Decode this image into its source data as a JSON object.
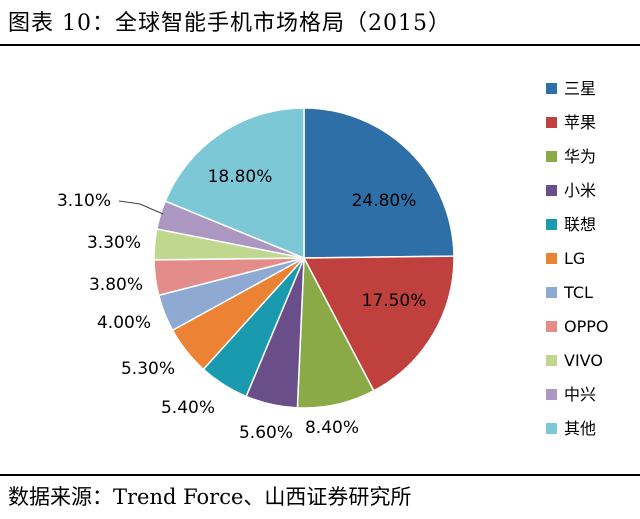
{
  "header": {
    "title": "图表 10：全球智能手机市场格局（2015）"
  },
  "footer": {
    "source": "数据来源：Trend Force、山西证券研究所"
  },
  "chart_data": {
    "type": "pie",
    "title": "",
    "unit": "%",
    "legend_position": "right",
    "slices": [
      {
        "name": "三星",
        "value": 24.8,
        "label": "24.80%",
        "color": "#2E6FA7"
      },
      {
        "name": "苹果",
        "value": 17.5,
        "label": "17.50%",
        "color": "#C0403D"
      },
      {
        "name": "华为",
        "value": 8.4,
        "label": "8.40%",
        "color": "#8AAA47"
      },
      {
        "name": "小米",
        "value": 5.6,
        "label": "5.60%",
        "color": "#6A4E8A"
      },
      {
        "name": "联想",
        "value": 5.4,
        "label": "5.40%",
        "color": "#1A9AAE"
      },
      {
        "name": "LG",
        "value": 5.3,
        "label": "5.30%",
        "color": "#EC8234"
      },
      {
        "name": "TCL",
        "value": 4.0,
        "label": "4.00%",
        "color": "#8EAAD2"
      },
      {
        "name": "OPPO",
        "value": 3.8,
        "label": "3.80%",
        "color": "#E38C89"
      },
      {
        "name": "VIVO",
        "value": 3.3,
        "label": "3.30%",
        "color": "#BFD78F"
      },
      {
        "name": "中兴",
        "value": 3.1,
        "label": "3.10%",
        "color": "#AB97C2"
      },
      {
        "name": "其他",
        "value": 18.8,
        "label": "18.80%",
        "color": "#7DC8D6"
      }
    ]
  }
}
